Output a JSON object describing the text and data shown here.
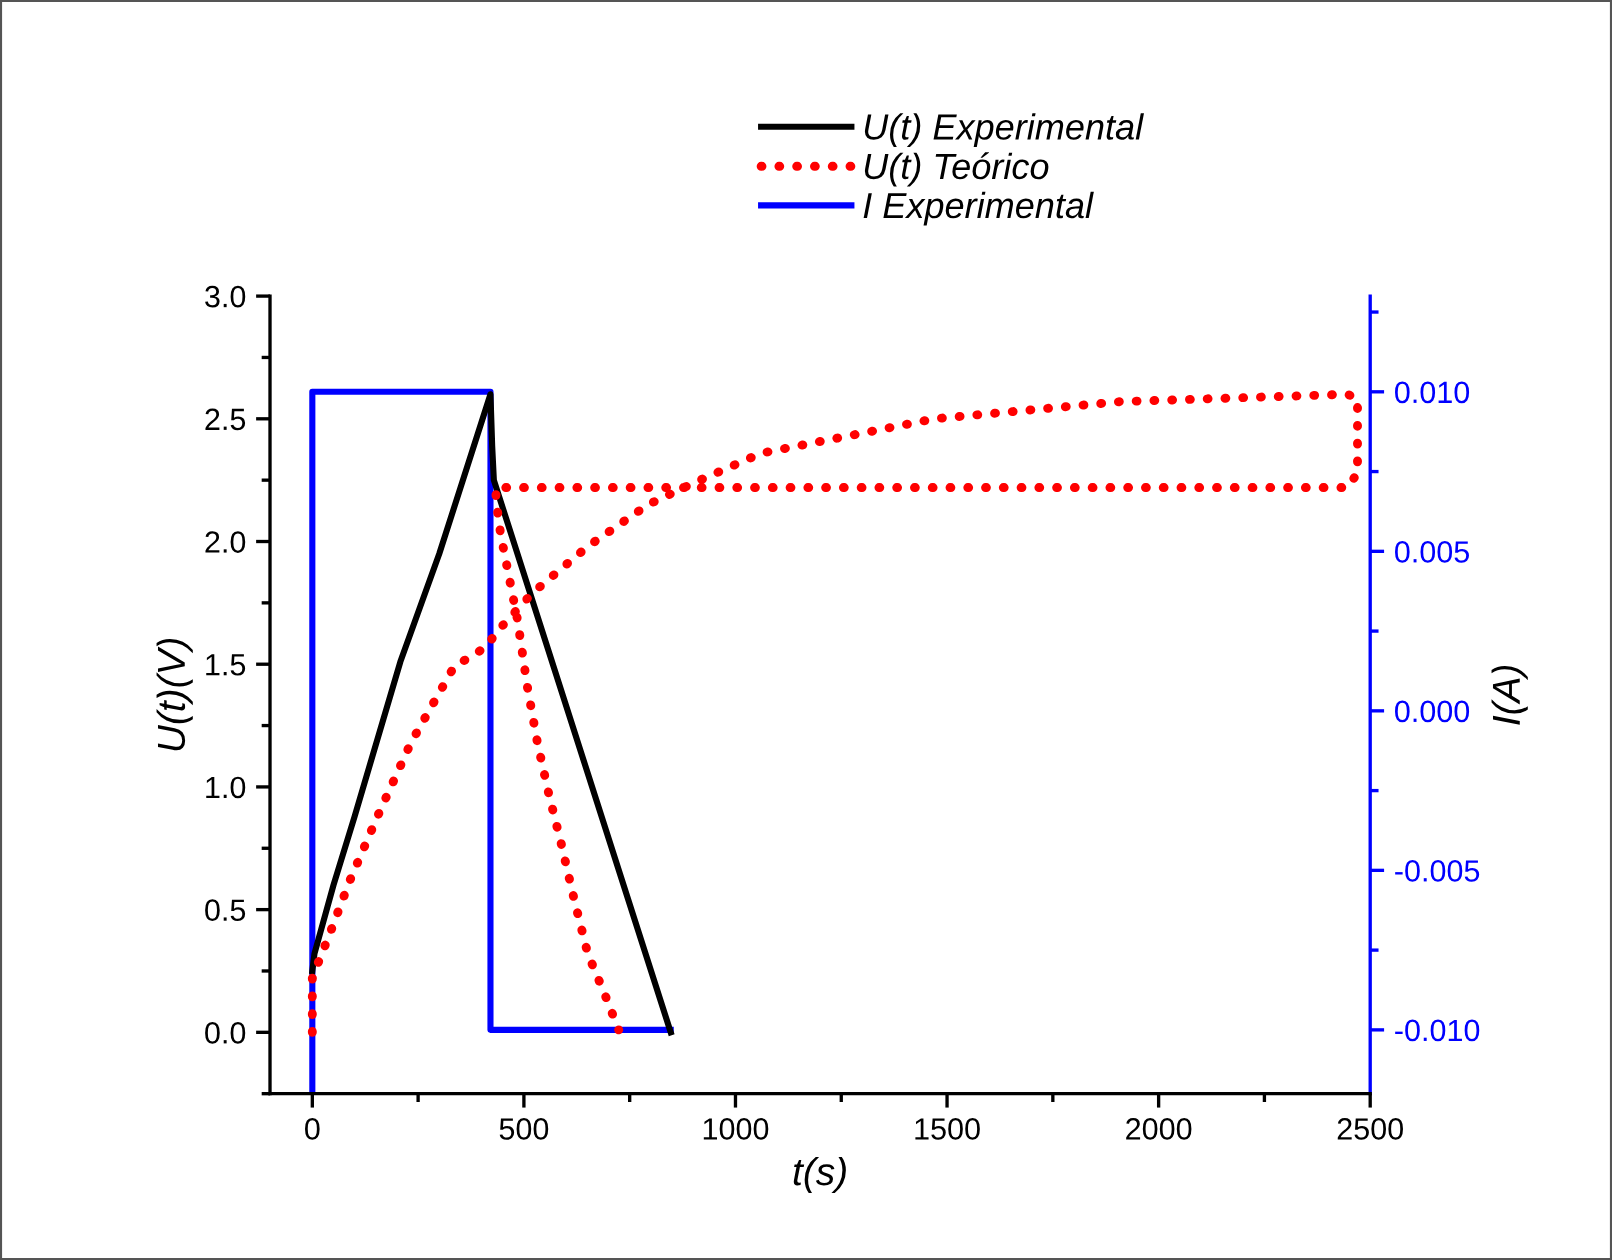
{
  "chart_data": {
    "type": "line",
    "xlabel": "t(s)",
    "ylabel": "U(t)(V)",
    "y2label": "I(A)",
    "xlim": [
      -100,
      2500
    ],
    "xticks": [
      0,
      500,
      1000,
      1500,
      2000,
      2500
    ],
    "ylim": [
      -0.25,
      3.0
    ],
    "yticks": [
      {
        "value": 0,
        "label": "0.0"
      },
      0.5,
      {
        "value": 1,
        "label": "1.0"
      },
      1.5,
      {
        "value": 2,
        "label": "2.0"
      },
      2.5,
      {
        "value": 3,
        "label": "3.0"
      }
    ],
    "y2lim": [
      -0.012,
      0.013
    ],
    "y2ticks": [
      {
        "value": -0.01,
        "label": "-0.010"
      },
      -0.005,
      {
        "value": 0,
        "label": "0.000"
      },
      0.005,
      {
        "value": 0.01,
        "label": "0.010"
      }
    ],
    "grid": false,
    "legend": "top",
    "marker": "none",
    "series": [
      {
        "name": "U(t) Experimental",
        "color": "#000000",
        "line_style": "solid",
        "x": [
          0,
          5,
          50,
          100,
          208,
          300,
          421,
          425,
          429,
          847
        ],
        "values": [
          0.25,
          0.32,
          0.6,
          0.88,
          1.51,
          1.95,
          2.6,
          2.39,
          2.25,
          0.0
        ]
      },
      {
        "name": "U(t) Teórico",
        "color": "#ff0000",
        "line_style": "dotted",
        "x": [
          0,
          0,
          13,
          43,
          89,
          154,
          233,
          335,
          411,
          435,
          520,
          651,
          793,
          903,
          1061,
          1178,
          1266,
          1470,
          1911,
          2447,
          2470,
          2470,
          2447,
          1500,
          1000,
          434,
          434,
          445,
          461,
          485,
          508,
          532,
          559,
          588,
          619,
          651,
          690,
          724
        ],
        "values": [
          0.0,
          0.22,
          0.28,
          0.41,
          0.62,
          0.88,
          1.18,
          1.49,
          1.57,
          1.63,
          1.79,
          1.98,
          2.15,
          2.24,
          2.36,
          2.4,
          2.43,
          2.5,
          2.57,
          2.6,
          2.58,
          2.28,
          2.22,
          2.22,
          2.22,
          2.22,
          2.17,
          2.03,
          1.89,
          1.68,
          1.41,
          1.18,
          0.97,
          0.77,
          0.54,
          0.32,
          0.16,
          0.01
        ]
      },
      {
        "name": "I Experimental",
        "color": "#0000ff",
        "line_style": "solid",
        "axis": "y2",
        "x": [
          0,
          0,
          421,
          421,
          847
        ],
        "values": [
          -0.012,
          0.01,
          0.01,
          -0.01,
          -0.01
        ]
      }
    ]
  }
}
